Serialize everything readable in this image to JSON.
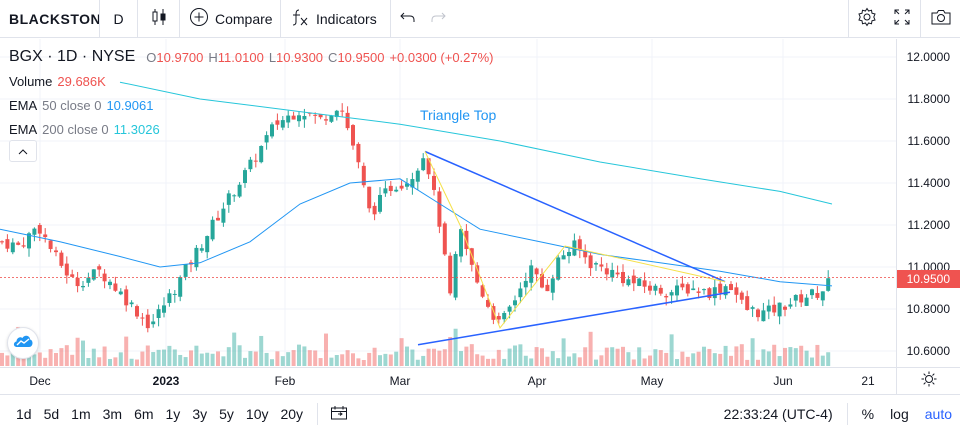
{
  "toolbar": {
    "symbol": "BLACKSTONE",
    "interval": "D",
    "compare_label": "Compare",
    "indicators_label": "Indicators"
  },
  "legend": {
    "symbol": "BGX",
    "interval": "1D",
    "exchange": "NYSE",
    "open_key": "O",
    "open": "10.9700",
    "high_key": "H",
    "high": "11.0100",
    "low_key": "L",
    "low": "10.9300",
    "close_key": "C",
    "close": "10.9500",
    "change": "+0.0300 (+0.27%)",
    "volume_label": "Volume",
    "volume_value": "29.686K",
    "ema50_name": "EMA",
    "ema50_params": "50 close 0",
    "ema50_value": "10.9061",
    "ema200_name": "EMA",
    "ema200_params": "200 close 0",
    "ema200_value": "11.3026"
  },
  "pattern_label": "Triangle Top",
  "price_axis": {
    "ticks": [
      "12.0000",
      "11.8000",
      "11.6000",
      "11.4000",
      "11.2000",
      "11.0000",
      "10.8000",
      "10.6000"
    ],
    "current_price": "10.9500"
  },
  "time_axis": {
    "ticks": [
      {
        "label": "Dec",
        "bold": false
      },
      {
        "label": "2023",
        "bold": true
      },
      {
        "label": "Feb",
        "bold": false
      },
      {
        "label": "Mar",
        "bold": false
      },
      {
        "label": "Apr",
        "bold": false
      },
      {
        "label": "May",
        "bold": false
      },
      {
        "label": "Jun",
        "bold": false
      },
      {
        "label": "21",
        "bold": false
      }
    ]
  },
  "bottombar": {
    "ranges": [
      "1d",
      "5d",
      "1m",
      "3m",
      "6m",
      "1y",
      "3y",
      "5y",
      "10y",
      "20y"
    ],
    "clock": "22:33:24 (UTC-4)",
    "percent_label": "%",
    "log_label": "log",
    "auto_label": "auto"
  },
  "colors": {
    "up": "#26a69a",
    "down": "#ef5350",
    "ema50": "#2196f3",
    "ema200": "#26c6da",
    "pattern": "#2962ff",
    "zigzag": "#f5e14a",
    "active": "#2962ff"
  }
}
